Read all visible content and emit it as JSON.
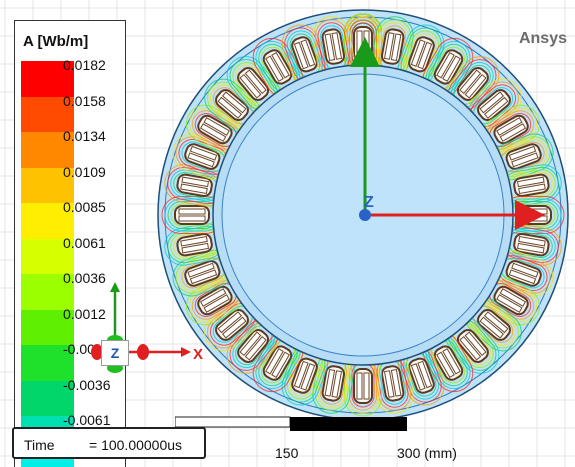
{
  "brand": "Ansys",
  "legend": {
    "title": "A [Wb/m]",
    "ticks": [
      "0.0182",
      "0.0158",
      "0.0134",
      "0.0109",
      "0.0085",
      "0.0061",
      "0.0036",
      "0.0012",
      "-0.0012",
      "-0.0036",
      "-0.0061"
    ],
    "colors": [
      "#ff0000",
      "#ff4a00",
      "#ff8800",
      "#ffc200",
      "#ffee00",
      "#d6ff00",
      "#9cff00",
      "#5ef000",
      "#1fe02a",
      "#00d66a",
      "#00e0b0",
      "#00f0e8"
    ]
  },
  "triad": {
    "z_label": "Z",
    "x_label": "X"
  },
  "view_axes": {
    "z_label": "Z"
  },
  "ruler": {
    "label_150": "150",
    "label_300": "300 (mm)"
  },
  "time": {
    "label": "Time",
    "value": "= 100.00000us"
  },
  "model": {
    "slot_count": 36
  }
}
